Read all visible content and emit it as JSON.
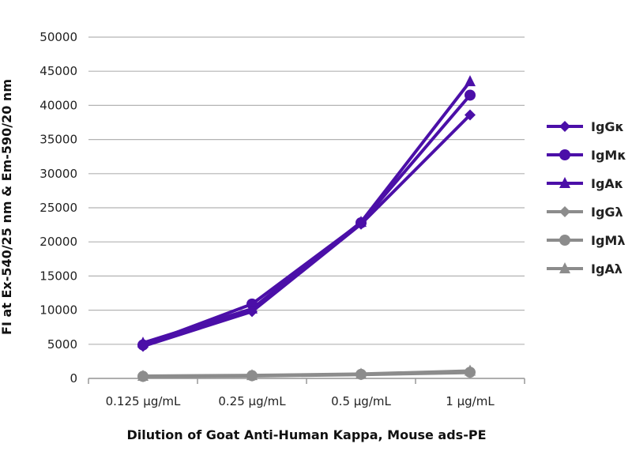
{
  "chart_data": {
    "type": "line",
    "title": "",
    "xlabel": "Dilution of Goat Anti-Human Kappa, Mouse ads-PE",
    "ylabel": "FI at Ex-540/25 nm & Em-590/20 nm",
    "categories": [
      "0.125 µg/mL",
      "0.25 µg/mL",
      "0.5 µg/mL",
      "1 µg/mL"
    ],
    "ylim": [
      0,
      50000
    ],
    "yticks": [
      0,
      5000,
      10000,
      15000,
      20000,
      25000,
      30000,
      35000,
      40000,
      45000,
      50000
    ],
    "grid": "horizontal",
    "legend": "right",
    "series": [
      {
        "name": "IgGκ",
        "marker": "diamond",
        "color": "#4b0fa8",
        "values": [
          4700,
          9800,
          22600,
          38600
        ]
      },
      {
        "name": "IgMκ",
        "marker": "circle",
        "color": "#4b0fa8",
        "values": [
          4900,
          10900,
          22800,
          41500
        ]
      },
      {
        "name": "IgAκ",
        "marker": "triangle",
        "color": "#4b0fa8",
        "values": [
          5200,
          10200,
          22900,
          43500
        ]
      },
      {
        "name": "IgGλ",
        "marker": "diamond",
        "color": "#8c8c8c",
        "values": [
          250,
          350,
          550,
          850
        ]
      },
      {
        "name": "IgMλ",
        "marker": "circle",
        "color": "#8c8c8c",
        "values": [
          300,
          400,
          600,
          900
        ]
      },
      {
        "name": "IgAλ",
        "marker": "triangle",
        "color": "#8c8c8c",
        "values": [
          350,
          450,
          650,
          1100
        ]
      }
    ]
  }
}
